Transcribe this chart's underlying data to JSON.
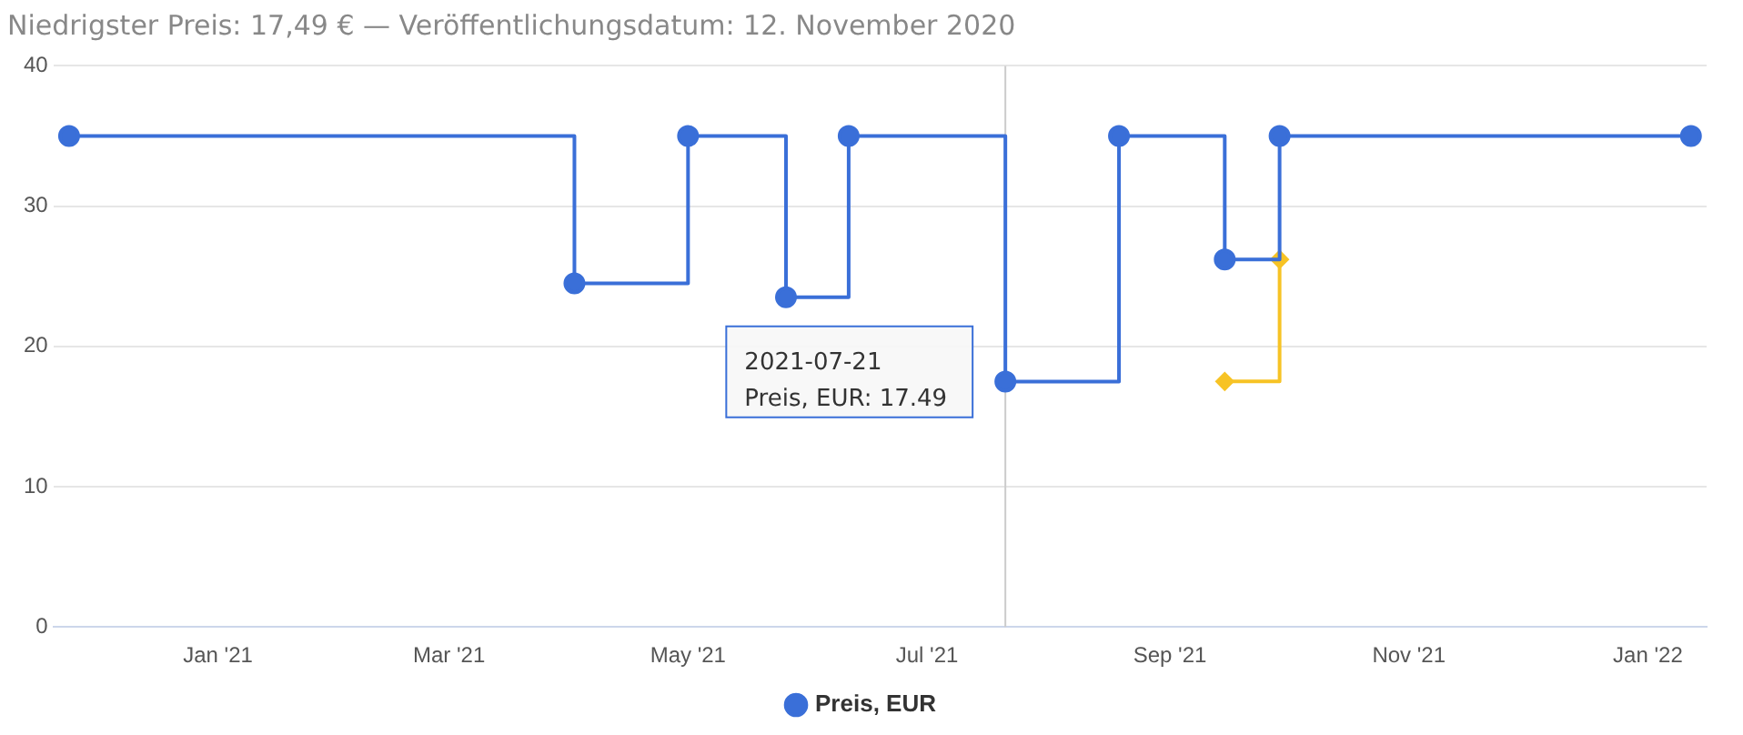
{
  "chart_data": {
    "type": "step",
    "title": "Niedrigster Preis: 17,49 € — Veröffentlichungsdatum: 12. November 2020",
    "series": [
      {
        "name": "Preis, EUR",
        "color": "#3a6fd8",
        "x": [
          "2020-11-24",
          "2021-04-02",
          "2021-05-01",
          "2021-05-26",
          "2021-06-11",
          "2021-07-21",
          "2021-08-19",
          "2021-09-15",
          "2021-09-29",
          "2022-01-12"
        ],
        "values": [
          35,
          24.5,
          35,
          23.5,
          35,
          17.49,
          35,
          26.2,
          35,
          35
        ]
      },
      {
        "color": "#f7c325",
        "marker": "diamond",
        "x": [
          "2021-09-15",
          "2021-09-29"
        ],
        "values": [
          17.5,
          26.2
        ]
      }
    ],
    "xlim": [
      "2020-11-20",
      "2022-01-16"
    ],
    "xticks": [
      {
        "value": "2021-01-01",
        "label": "Jan '21"
      },
      {
        "value": "2021-03-01",
        "label": "Mar '21"
      },
      {
        "value": "2021-05-01",
        "label": "May '21"
      },
      {
        "value": "2021-07-01",
        "label": "Jul '21"
      },
      {
        "value": "2021-09-01",
        "label": "Sep '21"
      },
      {
        "value": "2021-11-01",
        "label": "Nov '21"
      },
      {
        "value": "2022-01-01",
        "label": "Jan '22"
      }
    ],
    "ylim": [
      0,
      40
    ],
    "yticks": [
      0,
      10,
      20,
      30,
      40
    ],
    "grid": "y",
    "legend": "bottom",
    "marker": "circle",
    "ref_lines": [
      {
        "axis": "x",
        "value": "2021-07-21",
        "color": "#cccccc"
      }
    ],
    "annotations": [
      "2021-07-21",
      "Preis, EUR: 17.49"
    ]
  }
}
